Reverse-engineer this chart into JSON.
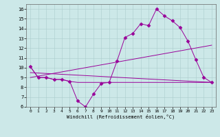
{
  "xlabel": "Windchill (Refroidissement éolien,°C)",
  "bg_color": "#cce8e8",
  "line_color": "#990099",
  "xlim": [
    -0.5,
    23.5
  ],
  "ylim": [
    6,
    16.5
  ],
  "xticks": [
    0,
    1,
    2,
    3,
    4,
    5,
    6,
    7,
    8,
    9,
    10,
    11,
    12,
    13,
    14,
    15,
    16,
    17,
    18,
    19,
    20,
    21,
    22,
    23
  ],
  "yticks": [
    6,
    7,
    8,
    9,
    10,
    11,
    12,
    13,
    14,
    15,
    16
  ],
  "series": [
    {
      "x": [
        0,
        1,
        2,
        3,
        4,
        5,
        6,
        7,
        8,
        9,
        10,
        11,
        12,
        13,
        14,
        15,
        16,
        17,
        18,
        19,
        20,
        21,
        22,
        23
      ],
      "y": [
        10.1,
        9.0,
        9.0,
        8.8,
        8.8,
        8.6,
        6.6,
        6.0,
        7.3,
        8.4,
        8.5,
        10.7,
        13.1,
        13.5,
        14.5,
        14.3,
        16.0,
        15.3,
        14.8,
        14.1,
        12.7,
        10.8,
        9.0,
        8.5
      ],
      "marker": "D",
      "markersize": 2.5
    },
    {
      "x": [
        0,
        1,
        2,
        3,
        4,
        5,
        6,
        7,
        8,
        9,
        10,
        11,
        12,
        13,
        14,
        15,
        16,
        17,
        18,
        19,
        20,
        21,
        22,
        23
      ],
      "y": [
        10.1,
        9.0,
        9.0,
        8.8,
        8.8,
        8.6,
        8.5,
        8.5,
        8.5,
        8.5,
        8.5,
        8.5,
        8.5,
        8.5,
        8.5,
        8.5,
        8.5,
        8.5,
        8.5,
        8.5,
        8.5,
        8.5,
        8.5,
        8.5
      ],
      "marker": null,
      "markersize": 0
    },
    {
      "x": [
        0,
        23
      ],
      "y": [
        9.0,
        12.3
      ],
      "marker": null,
      "markersize": 0
    },
    {
      "x": [
        0,
        23
      ],
      "y": [
        9.5,
        8.5
      ],
      "marker": null,
      "markersize": 0
    }
  ]
}
